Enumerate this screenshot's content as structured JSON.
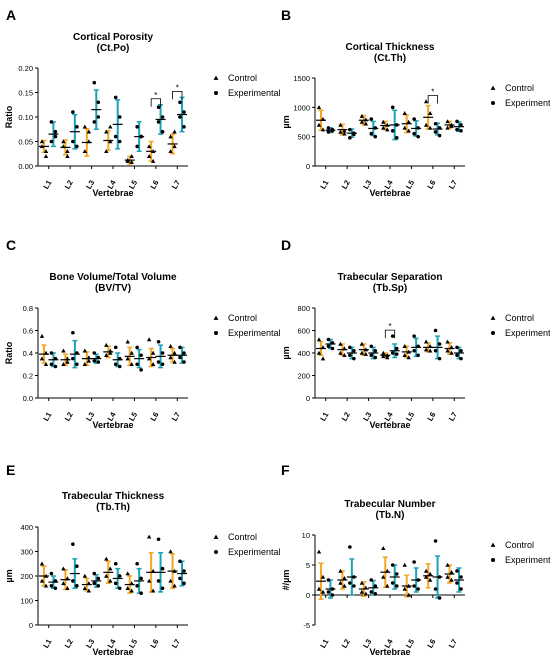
{
  "figure": {
    "legend_labels": [
      "Control",
      "Experimental"
    ],
    "colors": {
      "control": "#F5A623",
      "experimental": "#1AA3B5",
      "marker": "#000000",
      "text": "#000000"
    }
  },
  "chart_data": [
    {
      "panel": "A",
      "type": "scatter",
      "title": "Cortical Porosity",
      "subtitle": "(Ct.Po)",
      "xlabel": "Vertebrae",
      "ylabel": "Ratio",
      "ylim": [
        0,
        0.2
      ],
      "yticks": [
        "0.00",
        "0.05",
        "0.10",
        "0.15",
        "0.20"
      ],
      "categories": [
        "L1",
        "L2",
        "L3",
        "L4",
        "L5",
        "L6",
        "L7"
      ],
      "legend": [
        "Control",
        "Experimental"
      ],
      "legend_position": "right",
      "grid": false,
      "series": [
        {
          "name": "Control",
          "mean": [
            0.04,
            0.038,
            0.048,
            0.052,
            0.012,
            0.03,
            0.045
          ],
          "sd": [
            0.012,
            0.015,
            0.028,
            0.02,
            0.008,
            0.02,
            0.02
          ],
          "points": [
            [
              0.05,
              0.03,
              0.04,
              0.02
            ],
            [
              0.05,
              0.03,
              0.04,
              0.02
            ],
            [
              0.08,
              0.05,
              0.03,
              0.07
            ],
            [
              0.07,
              0.05,
              0.03,
              0.08
            ],
            [
              0.01,
              0.02,
              0.012,
              0.008
            ],
            [
              0.04,
              0.03,
              0.02,
              0.01
            ],
            [
              0.06,
              0.04,
              0.03,
              0.07
            ]
          ]
        },
        {
          "name": "Experimental",
          "mean": [
            0.065,
            0.07,
            0.115,
            0.085,
            0.06,
            0.095,
            0.105
          ],
          "sd": [
            0.025,
            0.035,
            0.04,
            0.05,
            0.03,
            0.03,
            0.035
          ],
          "points": [
            [
              0.09,
              0.07,
              0.05,
              0.06
            ],
            [
              0.11,
              0.08,
              0.05,
              0.04
            ],
            [
              0.17,
              0.13,
              0.09,
              0.1
            ],
            [
              0.14,
              0.1,
              0.06,
              0.05
            ],
            [
              0.08,
              0.06,
              0.04,
              0.06
            ],
            [
              0.12,
              0.1,
              0.09,
              0.07
            ],
            [
              0.13,
              0.11,
              0.1,
              0.08
            ]
          ]
        }
      ],
      "significance": [
        {
          "category": "L6",
          "label": "*"
        },
        {
          "category": "L7",
          "label": "*"
        }
      ]
    },
    {
      "panel": "B",
      "type": "scatter",
      "title": "Cortical Thickness",
      "subtitle": "(Ct.Th)",
      "xlabel": "Vertebrae",
      "ylabel": "µm",
      "ylim": [
        0,
        1500
      ],
      "yticks": [
        "0",
        "500",
        "1000",
        "1500"
      ],
      "categories": [
        "L1",
        "L2",
        "L3",
        "L4",
        "L5",
        "L6",
        "L7"
      ],
      "legend": [
        "Control",
        "Experimental"
      ],
      "legend_position": "right",
      "grid": false,
      "series": [
        {
          "name": "Control",
          "mean": [
            780,
            620,
            780,
            690,
            720,
            830,
            700
          ],
          "sd": [
            170,
            90,
            80,
            70,
            150,
            200,
            60
          ],
          "points": [
            [
              1000,
              800,
              700,
              620
            ],
            [
              700,
              600,
              580,
              550
            ],
            [
              850,
              790,
              750,
              720
            ],
            [
              750,
              700,
              650,
              620
            ],
            [
              900,
              750,
              650,
              600
            ],
            [
              1100,
              900,
              700,
              650
            ],
            [
              760,
              700,
              650,
              680
            ]
          ]
        },
        {
          "name": "Experimental",
          "mean": [
            610,
            560,
            640,
            700,
            640,
            630,
            670
          ],
          "sd": [
            40,
            70,
            120,
            250,
            130,
            100,
            80
          ],
          "points": [
            [
              650,
              600,
              580,
              620
            ],
            [
              620,
              560,
              480,
              540
            ],
            [
              800,
              650,
              550,
              500
            ],
            [
              1000,
              700,
              600,
              480
            ],
            [
              800,
              650,
              550,
              500
            ],
            [
              720,
              650,
              580,
              520
            ],
            [
              760,
              700,
              620,
              600
            ]
          ]
        }
      ],
      "significance": [
        {
          "category": "L6",
          "label": "*"
        }
      ]
    },
    {
      "panel": "C",
      "type": "scatter",
      "title": "Bone Volume/Total Volume",
      "subtitle": "(BV/TV)",
      "xlabel": "Vertebrae",
      "ylabel": "Ratio",
      "ylim": [
        0,
        0.8
      ],
      "yticks": [
        "0.0",
        "0.2",
        "0.4",
        "0.6",
        "0.8"
      ],
      "categories": [
        "L1",
        "L2",
        "L3",
        "L4",
        "L5",
        "L6",
        "L7"
      ],
      "legend": [
        "Control",
        "Experimental"
      ],
      "legend_position": "right",
      "grid": false,
      "series": [
        {
          "name": "Control",
          "mean": [
            0.39,
            0.34,
            0.35,
            0.41,
            0.37,
            0.36,
            0.38
          ],
          "sd": [
            0.08,
            0.05,
            0.06,
            0.05,
            0.08,
            0.08,
            0.06
          ],
          "points": [
            [
              0.55,
              0.4,
              0.35,
              0.3
            ],
            [
              0.42,
              0.35,
              0.3,
              0.32
            ],
            [
              0.42,
              0.36,
              0.3,
              0.33
            ],
            [
              0.47,
              0.42,
              0.38,
              0.4
            ],
            [
              0.5,
              0.4,
              0.35,
              0.3
            ],
            [
              0.52,
              0.4,
              0.35,
              0.3
            ],
            [
              0.46,
              0.4,
              0.36,
              0.32
            ]
          ]
        },
        {
          "name": "Experimental",
          "mean": [
            0.34,
            0.39,
            0.35,
            0.34,
            0.35,
            0.37,
            0.38
          ],
          "sd": [
            0.06,
            0.12,
            0.04,
            0.06,
            0.08,
            0.1,
            0.07
          ],
          "points": [
            [
              0.4,
              0.35,
              0.3,
              0.28
            ],
            [
              0.58,
              0.4,
              0.35,
              0.3
            ],
            [
              0.4,
              0.36,
              0.33,
              0.32
            ],
            [
              0.45,
              0.35,
              0.3,
              0.28
            ],
            [
              0.45,
              0.38,
              0.3,
              0.25
            ],
            [
              0.5,
              0.4,
              0.32,
              0.3
            ],
            [
              0.45,
              0.4,
              0.36,
              0.32
            ]
          ]
        }
      ],
      "significance": []
    },
    {
      "panel": "D",
      "type": "scatter",
      "title": "Trabecular Separation",
      "subtitle": "(Tb.Sp)",
      "xlabel": "Vertebrae",
      "ylabel": "µm",
      "ylim": [
        0,
        800
      ],
      "yticks": [
        "0",
        "200",
        "400",
        "600",
        "800"
      ],
      "categories": [
        "L1",
        "L2",
        "L3",
        "L4",
        "L5",
        "L6",
        "L7"
      ],
      "legend": [
        "Control",
        "Experimental"
      ],
      "legend_position": "right",
      "grid": false,
      "series": [
        {
          "name": "Control",
          "mean": [
            440,
            430,
            430,
            380,
            410,
            450,
            440
          ],
          "sd": [
            60,
            50,
            50,
            20,
            50,
            40,
            50
          ],
          "points": [
            [
              520,
              450,
              400,
              350
            ],
            [
              480,
              440,
              400,
              380
            ],
            [
              480,
              430,
              400,
              390
            ],
            [
              400,
              380,
              370,
              360
            ],
            [
              460,
              410,
              380,
              360
            ],
            [
              500,
              460,
              430,
              420
            ],
            [
              500,
              450,
              420,
              400
            ]
          ]
        },
        {
          "name": "Experimental",
          "mean": [
            480,
            400,
            400,
            420,
            450,
            450,
            400
          ],
          "sd": [
            40,
            50,
            50,
            60,
            80,
            100,
            50
          ],
          "points": [
            [
              520,
              490,
              460,
              440
            ],
            [
              450,
              420,
              380,
              350
            ],
            [
              460,
              420,
              380,
              360
            ],
            [
              550,
              440,
              400,
              390
            ],
            [
              550,
              460,
              420,
              380
            ],
            [
              600,
              480,
              420,
              350
            ],
            [
              450,
              420,
              380,
              350
            ]
          ]
        }
      ],
      "significance": [
        {
          "category": "L4",
          "label": "*"
        }
      ]
    },
    {
      "panel": "E",
      "type": "scatter",
      "title": "Trabecular Thickness",
      "subtitle": "(Tb.Th)",
      "xlabel": "Vertebrae",
      "ylabel": "µm",
      "ylim": [
        0,
        400
      ],
      "yticks": [
        "0",
        "100",
        "200",
        "300",
        "400"
      ],
      "categories": [
        "L1",
        "L2",
        "L3",
        "L4",
        "L5",
        "L6",
        "L7"
      ],
      "legend": [
        "Control",
        "Experimental"
      ],
      "legend_position": "right",
      "grid": false,
      "series": [
        {
          "name": "Control",
          "mean": [
            200,
            185,
            165,
            215,
            165,
            215,
            220
          ],
          "sd": [
            40,
            40,
            25,
            45,
            35,
            80,
            70
          ],
          "points": [
            [
              250,
              200,
              180,
              160
            ],
            [
              230,
              190,
              170,
              150
            ],
            [
              200,
              170,
              150,
              140
            ],
            [
              270,
              230,
              200,
              180
            ],
            [
              210,
              170,
              150,
              140
            ],
            [
              360,
              220,
              180,
              140
            ],
            [
              300,
              220,
              180,
              160
            ]
          ]
        },
        {
          "name": "Experimental",
          "mean": [
            175,
            210,
            180,
            190,
            180,
            215,
            210
          ],
          "sd": [
            25,
            60,
            25,
            40,
            50,
            80,
            50
          ],
          "points": [
            [
              210,
              180,
              160,
              150
            ],
            [
              330,
              240,
              180,
              160
            ],
            [
              210,
              190,
              170,
              160
            ],
            [
              250,
              200,
              170,
              150
            ],
            [
              250,
              190,
              160,
              130
            ],
            [
              350,
              230,
              180,
              150
            ],
            [
              260,
              220,
              190,
              170
            ]
          ]
        }
      ],
      "significance": []
    },
    {
      "panel": "F",
      "type": "scatter",
      "title": "Trabecular Number",
      "subtitle": "(Tb.N)",
      "xlabel": "Vertebrae",
      "ylabel": "#/µm",
      "ylim": [
        -5,
        10
      ],
      "yticks": [
        "-5",
        "0",
        "5",
        "10"
      ],
      "categories": [
        "L1",
        "L2",
        "L3",
        "L4",
        "L5",
        "L6",
        "L7"
      ],
      "legend": [
        "Control",
        "Experimental"
      ],
      "legend_position": "right",
      "grid": false,
      "series": [
        {
          "name": "Control",
          "mean": [
            2.3,
            2.5,
            1.0,
            3.8,
            1.5,
            3.2,
            3.5
          ],
          "sd": [
            3.0,
            1.5,
            1.2,
            2.5,
            1.8,
            2.0,
            1.5
          ],
          "points": [
            [
              7.2,
              3.0,
              1.0,
              0.5
            ],
            [
              4.0,
              2.8,
              2.0,
              1.5
            ],
            [
              2.0,
              1.2,
              0.5,
              0.2
            ],
            [
              7.8,
              4.0,
              3.0,
              1.5
            ],
            [
              5.0,
              1.5,
              1.0,
              0.0
            ],
            [
              4.0,
              3.5,
              3.0,
              2.5
            ],
            [
              5.0,
              3.8,
              3.0,
              2.5
            ]
          ]
        },
        {
          "name": "Experimental",
          "mean": [
            1.0,
            3.0,
            1.2,
            3.0,
            2.5,
            3.0,
            2.5
          ],
          "sd": [
            1.5,
            3.0,
            1.2,
            2.0,
            2.0,
            3.5,
            2.0
          ],
          "points": [
            [
              2.5,
              1.0,
              0.5,
              0.0
            ],
            [
              8.0,
              3.0,
              2.0,
              1.5
            ],
            [
              2.5,
              1.5,
              0.5,
              0.2
            ],
            [
              5.0,
              3.5,
              2.0,
              1.5
            ],
            [
              5.5,
              2.5,
              1.5,
              1.0
            ],
            [
              9.0,
              3.0,
              1.0,
              -0.5
            ],
            [
              4.0,
              3.0,
              2.0,
              1.0
            ]
          ]
        }
      ],
      "significance": []
    }
  ]
}
